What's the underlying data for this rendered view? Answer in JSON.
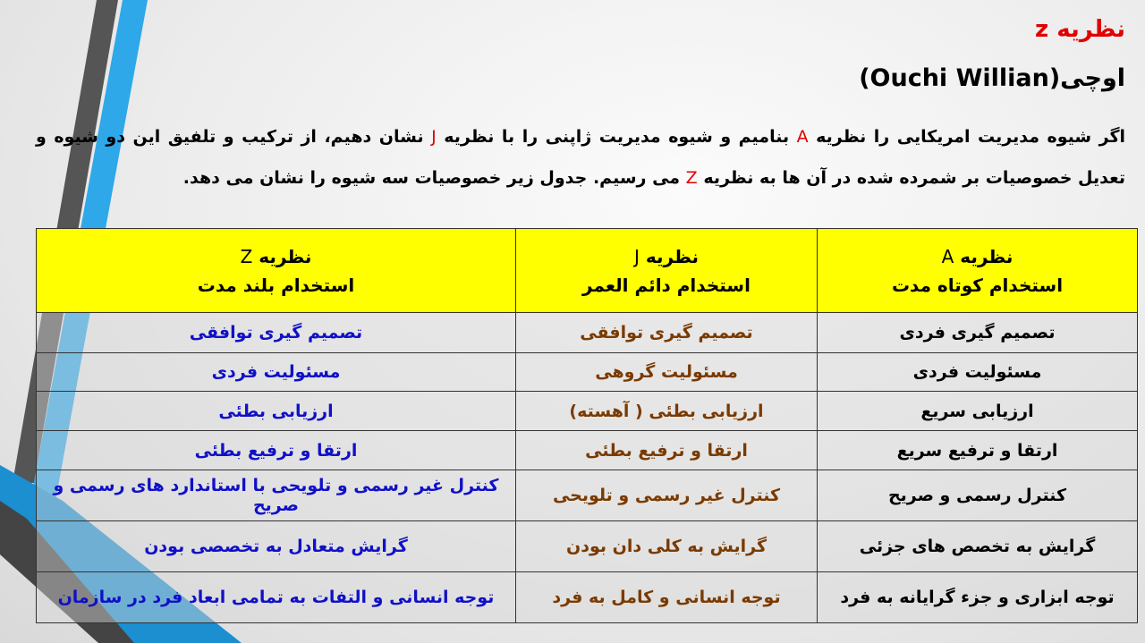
{
  "slide": {
    "title": "نظریه z",
    "subtitle": "اوچی(Ouchi Willian)",
    "paragraph": [
      {
        "text": "اگر شیوه مدیریت امریکایی را نظریه ",
        "accent": false
      },
      {
        "text": "A",
        "accent": true
      },
      {
        "text": " بنامیم و شیوه مدیریت ژاپنی را با نظریه ",
        "accent": false
      },
      {
        "text": "J",
        "accent": true
      },
      {
        "text": " نشان دهیم، از ترکیب و تلفیق این دو شیوه و تعدیل خصوصیات بر شمرده شده در آن ها به نظریه ",
        "accent": false
      },
      {
        "text": "Z",
        "accent": true
      },
      {
        "text": " می رسیم. جدول زیر خصوصیات سه شیوه را نشان می دهد.",
        "accent": false
      }
    ]
  },
  "table": {
    "headers": [
      {
        "theory": "نظریه",
        "letter": "A",
        "subtitle": "استخدام کوتاه مدت"
      },
      {
        "theory": "نظریه",
        "letter": "J",
        "subtitle": "استخدام دائم العمر"
      },
      {
        "theory": "نظریه",
        "letter": "Z",
        "subtitle": "استخدام بلند مدت"
      }
    ],
    "rows": [
      [
        "تصمیم گیری فردی",
        "تصمیم گیری توافقی",
        "تصمیم گیری توافقی"
      ],
      [
        "مسئولیت فردی",
        "مسئولیت گروهی",
        "مسئولیت فردی"
      ],
      [
        "ارزیابی سریع",
        "ارزیابی بطئی ( آهسته)",
        "ارزیابی بطئی"
      ],
      [
        "ارتقا و ترفیع سریع",
        "ارتقا و ترفیع بطئی",
        "ارتقا و ترفیع بطئی"
      ],
      [
        "کنترل رسمی و صریح",
        "کنترل غیر رسمی و تلویحی",
        "کنترل غیر رسمی و تلویحی با استاندارد های رسمی و صریح"
      ],
      [
        "گرایش به تخصص های جزئی",
        "گرایش به کلی دان بودن",
        "گرایش متعادل به تخصصی بودن"
      ],
      [
        "توجه ابزاری و جزء گرایانه به فرد",
        "توجه انسانی و کامل به فرد",
        "توجه انسانی و التفات به تمامی ابعاد فرد در سازمان"
      ]
    ]
  },
  "colors": {
    "accent": "#e00000",
    "header_bg": "#ffff00",
    "col_a": "#000000",
    "col_j": "#7a3a00",
    "col_z": "#1010c8",
    "stripe_blue": "#2ea8e8",
    "stripe_gray": "#555555"
  }
}
